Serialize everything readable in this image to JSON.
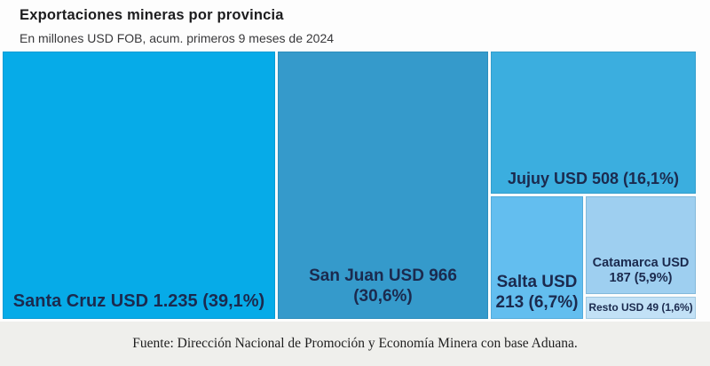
{
  "header": {
    "title": "Exportaciones mineras por provincia",
    "subtitle": "En millones USD FOB, acum. primeros 9 meses de 2024"
  },
  "treemap": {
    "label_color": "#1B2A4E",
    "blocks": [
      {
        "name": "Santa Cruz",
        "line1": "Santa Cruz USD 1.235 (39,1%)",
        "line2": "",
        "value": 1235,
        "percent": "39,1%",
        "color": "#06ABE8"
      },
      {
        "name": "San Juan",
        "line1": "San Juan USD 966",
        "line2": "(30,6%)",
        "value": 966,
        "percent": "30,6%",
        "color": "#359ACB"
      },
      {
        "name": "Jujuy",
        "line1": "Jujuy USD 508 (16,1%)",
        "line2": "",
        "value": 508,
        "percent": "16,1%",
        "color": "#3BAEDF"
      },
      {
        "name": "Salta",
        "line1": "Salta USD",
        "line2": "213 (6,7%)",
        "value": 213,
        "percent": "6,7%",
        "color": "#63BEEF"
      },
      {
        "name": "Catamarca",
        "line1": "Catamarca USD",
        "line2": "187 (5,9%)",
        "value": 187,
        "percent": "5,9%",
        "color": "#9ECFF0"
      },
      {
        "name": "Resto",
        "line1": "Resto USD 49 (1,6%)",
        "line2": "",
        "value": 49,
        "percent": "1,6%",
        "color": "#C2E1F6"
      }
    ]
  },
  "footer": {
    "source": "Fuente: Dirección Nacional de Promoción y Economía Minera con base Aduana."
  },
  "chart_data": {
    "type": "treemap",
    "title": "Exportaciones mineras por provincia",
    "subtitle": "En millones USD FOB, acum. primeros 9 meses de 2024",
    "unit": "millones USD FOB",
    "categories": [
      "Santa Cruz",
      "San Juan",
      "Jujuy",
      "Salta",
      "Catamarca",
      "Resto"
    ],
    "values": [
      1235,
      966,
      508,
      213,
      187,
      49
    ],
    "percentages": [
      39.1,
      30.6,
      16.1,
      6.7,
      5.9,
      1.6
    ],
    "colors": [
      "#06ABE8",
      "#359ACB",
      "#3BAEDF",
      "#63BEEF",
      "#9ECFF0",
      "#C2E1F6"
    ],
    "legend": "none",
    "source": "Fuente: Dirección Nacional de Promoción y Economía Minera con base Aduana."
  }
}
